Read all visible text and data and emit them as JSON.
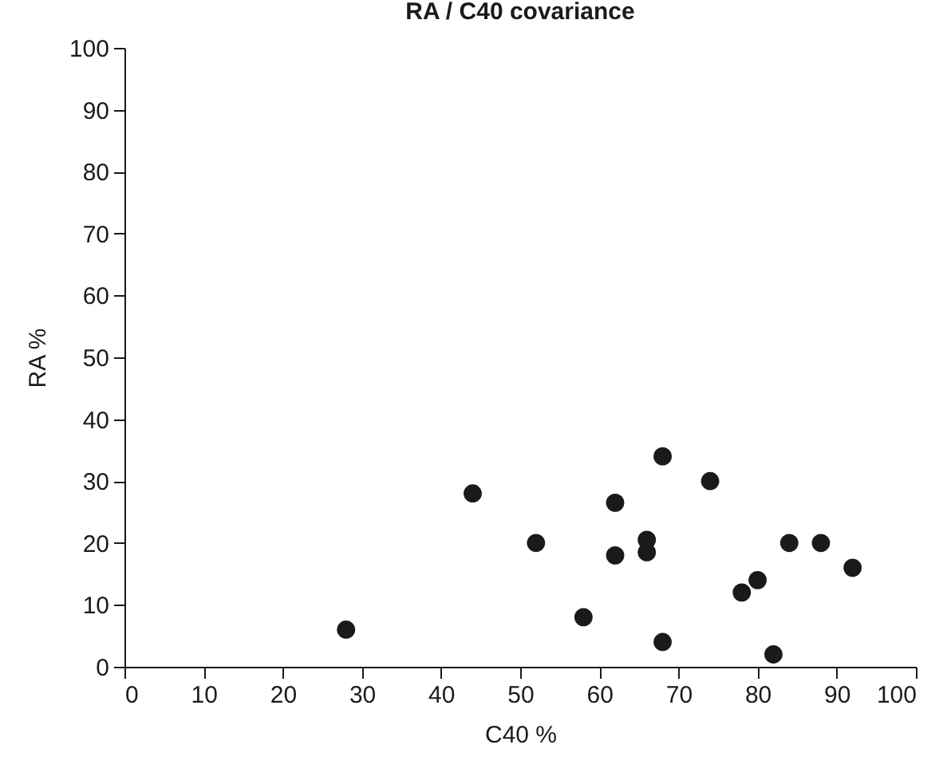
{
  "chart_data": {
    "type": "scatter",
    "title": "RA / C40 covariance",
    "xlabel": "C40 %",
    "ylabel": "RA %",
    "x": [
      28,
      44,
      52,
      58,
      62,
      62,
      66,
      66,
      68,
      68,
      74,
      78,
      80,
      82,
      84,
      88,
      92
    ],
    "series": [
      {
        "color": "#1a1a1a",
        "values": [
          6,
          28,
          20,
          8,
          26.5,
          18,
          20.5,
          18.5,
          34,
          4,
          30,
          12,
          14,
          2,
          20,
          20,
          16
        ]
      }
    ],
    "xlim": [
      0,
      100
    ],
    "xticks": [
      0,
      10,
      20,
      30,
      40,
      50,
      60,
      70,
      80,
      90,
      100
    ],
    "ylim": [
      0,
      100
    ],
    "yticks": [
      0,
      10,
      20,
      30,
      40,
      50,
      60,
      70,
      80,
      90,
      100
    ],
    "marker": "circle",
    "grid": false
  }
}
